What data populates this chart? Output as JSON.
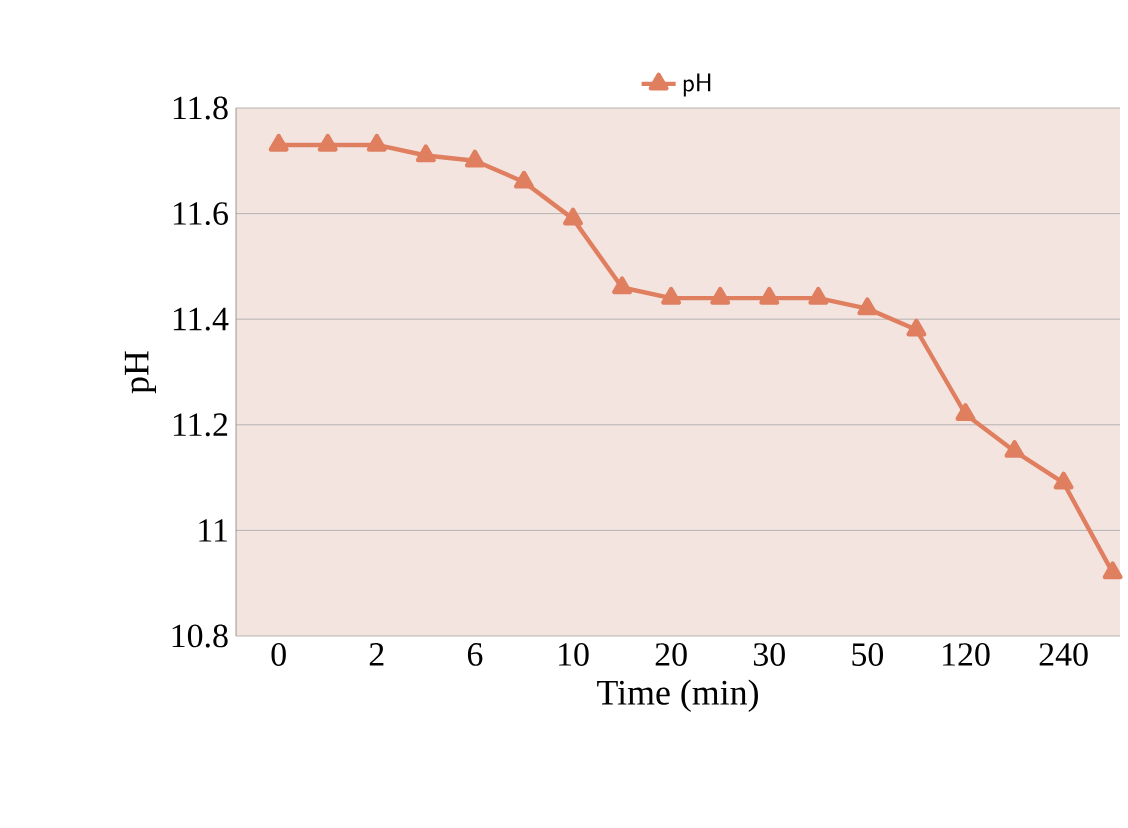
{
  "chart_data": {
    "type": "line",
    "xlabel": "Time (min)",
    "ylabel": "pH",
    "categories": [
      "0",
      null,
      "2",
      null,
      "6",
      null,
      "10",
      null,
      "20",
      null,
      "30",
      null,
      "50",
      null,
      "120",
      null,
      "240",
      null
    ],
    "series": [
      {
        "name": "pH",
        "color": "#e07f5f",
        "values": [
          11.73,
          11.73,
          11.73,
          11.71,
          11.7,
          11.66,
          11.59,
          11.46,
          11.44,
          11.44,
          11.44,
          11.44,
          11.42,
          11.38,
          11.22,
          11.15,
          11.09,
          10.92
        ]
      }
    ],
    "ylim": [
      10.8,
      11.8
    ],
    "yticks": [
      10.8,
      11,
      11.2,
      11.4,
      11.6,
      11.8
    ],
    "grid": "y",
    "legend": "top",
    "marker": "triangle",
    "line_style": "solid"
  }
}
